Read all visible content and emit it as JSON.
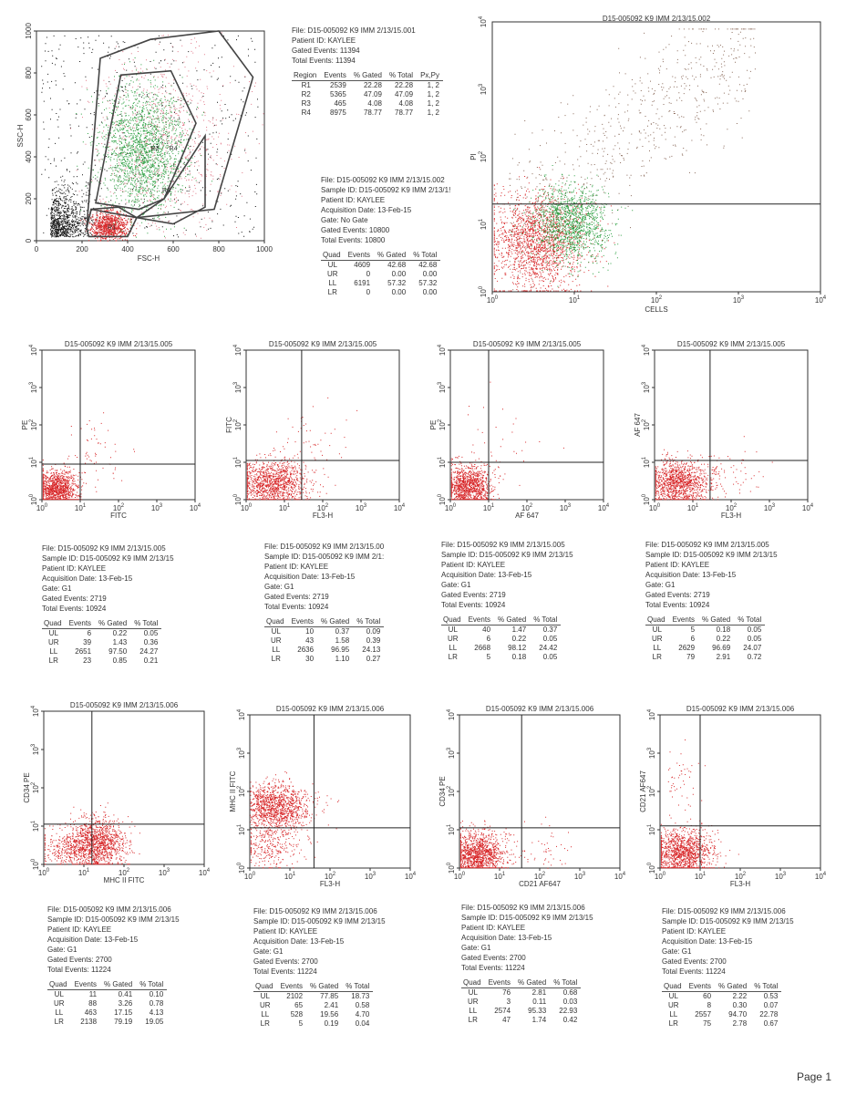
{
  "page_label": "Page 1",
  "scatter_main": {
    "title": "D15-005092 K9 IMM 2/13/15.001",
    "xlabel": "FSC-H",
    "ylabel": "SSC-H",
    "xticks": [
      "0",
      "200",
      "400",
      "600",
      "800",
      "1000"
    ],
    "yticks": [
      "0",
      "200",
      "400",
      "600",
      "800",
      "1000"
    ],
    "gate_labels": [
      "R1",
      "R2",
      "R3",
      "R4"
    ]
  },
  "main_info": {
    "lines": [
      "File: D15-005092 K9 IMM 2/13/15.001",
      "Patient ID: KAYLEE",
      "Gated Events: 11394",
      "Total Events: 11394"
    ],
    "headers": [
      "Region",
      "Events",
      "% Gated",
      "% Total",
      "Px,Py"
    ],
    "rows": [
      [
        "R1",
        "2539",
        "22.28",
        "22.28",
        "1, 2"
      ],
      [
        "R2",
        "5365",
        "47.09",
        "47.09",
        "1, 2"
      ],
      [
        "R3",
        "465",
        "4.08",
        "4.08",
        "1, 2"
      ],
      [
        "R4",
        "8975",
        "78.77",
        "78.77",
        "1, 2"
      ]
    ]
  },
  "pi_info": {
    "lines": [
      "File: D15-005092 K9 IMM 2/13/15.002",
      "Sample ID: D15-005092 K9 IMM 2/13/1!",
      "Patient ID: KAYLEE",
      "Acquisition Date: 13-Feb-15",
      "Gate: No Gate",
      "Gated Events: 10800",
      "Total Events: 10800"
    ],
    "headers": [
      "Quad",
      "Events",
      "% Gated",
      "% Total"
    ],
    "rows": [
      [
        "UL",
        "4609",
        "42.68",
        "42.68"
      ],
      [
        "UR",
        "0",
        "0.00",
        "0.00"
      ],
      [
        "LL",
        "6191",
        "57.32",
        "57.32"
      ],
      [
        "LR",
        "0",
        "0.00",
        "0.00"
      ]
    ]
  },
  "pi_plot": {
    "title": "D15-005092 K9 IMM 2/13/15.002",
    "xlabel": "CELLS",
    "ylabel": "PI"
  },
  "log_ticks": {
    "base": "10",
    "exps": [
      "0",
      "1",
      "2",
      "3",
      "4"
    ]
  },
  "row2_plots": [
    {
      "title": "D15-005092 K9 IMM 2/13/15.005",
      "xlabel": "FITC",
      "ylabel": "PE"
    },
    {
      "title": "D15-005092 K9 IMM 2/13/15.005",
      "xlabel": "FL3-H",
      "ylabel": "FITC"
    },
    {
      "title": "D15-005092 K9 IMM 2/13/15.005",
      "xlabel": "AF 647",
      "ylabel": "PE"
    },
    {
      "title": "D15-005092 K9 IMM 2/13/15.005",
      "xlabel": "FL3-H",
      "ylabel": "AF 647"
    }
  ],
  "row2_info": [
    {
      "lines": [
        "File: D15-005092 K9 IMM 2/13/15.005",
        "Sample ID: D15-005092 K9 IMM 2/13/15",
        "Patient ID: KAYLEE",
        "Acquisition Date: 13-Feb-15",
        "Gate: G1",
        "Gated Events: 2719",
        "Total Events: 10924"
      ],
      "headers": [
        "Quad",
        "Events",
        "% Gated",
        "% Total"
      ],
      "rows": [
        [
          "UL",
          "6",
          "0.22",
          "0.05"
        ],
        [
          "UR",
          "39",
          "1.43",
          "0.36"
        ],
        [
          "LL",
          "2651",
          "97.50",
          "24.27"
        ],
        [
          "LR",
          "23",
          "0.85",
          "0.21"
        ]
      ]
    },
    {
      "lines": [
        "File: D15-005092 K9 IMM 2/13/15.00",
        "Sample ID: D15-005092 K9 IMM 2/1:",
        "Patient ID: KAYLEE",
        "Acquisition Date: 13-Feb-15",
        "Gate: G1",
        "Gated Events: 2719",
        "Total Events: 10924"
      ],
      "headers": [
        "Quad",
        "Events",
        "% Gated",
        "% Total"
      ],
      "rows": [
        [
          "UL",
          "10",
          "0.37",
          "0.09"
        ],
        [
          "UR",
          "43",
          "1.58",
          "0.39"
        ],
        [
          "LL",
          "2636",
          "96.95",
          "24.13"
        ],
        [
          "LR",
          "30",
          "1.10",
          "0.27"
        ]
      ]
    },
    {
      "lines": [
        "File: D15-005092 K9 IMM 2/13/15.005",
        "Sample ID: D15-005092 K9 IMM 2/13/15",
        "Patient ID: KAYLEE",
        "Acquisition Date: 13-Feb-15",
        "Gate: G1",
        "Gated Events: 2719",
        "Total Events: 10924"
      ],
      "headers": [
        "Quad",
        "Events",
        "% Gated",
        "% Total"
      ],
      "rows": [
        [
          "UL",
          "40",
          "1.47",
          "0.37"
        ],
        [
          "UR",
          "6",
          "0.22",
          "0.05"
        ],
        [
          "LL",
          "2668",
          "98.12",
          "24.42"
        ],
        [
          "LR",
          "5",
          "0.18",
          "0.05"
        ]
      ]
    },
    {
      "lines": [
        "File: D15-005092 K9 IMM 2/13/15.005",
        "Sample ID: D15-005092 K9 IMM 2/13/15",
        "Patient ID: KAYLEE",
        "Acquisition Date: 13-Feb-15",
        "Gate: G1",
        "Gated Events: 2719",
        "Total Events: 10924"
      ],
      "headers": [
        "Quad",
        "Events",
        "% Gated",
        "% Total"
      ],
      "rows": [
        [
          "UL",
          "5",
          "0.18",
          "0.05"
        ],
        [
          "UR",
          "6",
          "0.22",
          "0.05"
        ],
        [
          "LL",
          "2629",
          "96.69",
          "24.07"
        ],
        [
          "LR",
          "79",
          "2.91",
          "0.72"
        ]
      ]
    }
  ],
  "row3_plots": [
    {
      "title": "D15-005092 K9 IMM 2/13/15.006",
      "xlabel": "MHC II FITC",
      "ylabel": "CD34 PE"
    },
    {
      "title": "D15-005092 K9 IMM 2/13/15.006",
      "xlabel": "FL3-H",
      "ylabel": "MHC II FITC"
    },
    {
      "title": "D15-005092 K9 IMM 2/13/15.006",
      "xlabel": "CD21 AF647",
      "ylabel": "CD34 PE"
    },
    {
      "title": "D15-005092 K9 IMM 2/13/15.006",
      "xlabel": "FL3-H",
      "ylabel": "CD21 AF647"
    }
  ],
  "row3_info": [
    {
      "lines": [
        "File: D15-005092 K9 IMM 2/13/15.006",
        "Sample ID: D15-005092 K9 IMM 2/13/15",
        "Patient ID: KAYLEE",
        "Acquisition Date: 13-Feb-15",
        "Gate: G1",
        "Gated Events: 2700",
        "Total Events: 11224"
      ],
      "headers": [
        "Quad",
        "Events",
        "% Gated",
        "% Total"
      ],
      "rows": [
        [
          "UL",
          "11",
          "0.41",
          "0.10"
        ],
        [
          "UR",
          "88",
          "3.26",
          "0.78"
        ],
        [
          "LL",
          "463",
          "17.15",
          "4.13"
        ],
        [
          "LR",
          "2138",
          "79.19",
          "19.05"
        ]
      ]
    },
    {
      "lines": [
        "File: D15-005092 K9 IMM 2/13/15.006",
        "Sample ID: D15-005092 K9 IMM 2/13/15",
        "Patient ID: KAYLEE",
        "Acquisition Date: 13-Feb-15",
        "Gate: G1",
        "Gated Events: 2700",
        "Total Events: 11224"
      ],
      "headers": [
        "Quad",
        "Events",
        "% Gated",
        "% Total"
      ],
      "rows": [
        [
          "UL",
          "2102",
          "77.85",
          "18.73"
        ],
        [
          "UR",
          "65",
          "2.41",
          "0.58"
        ],
        [
          "LL",
          "528",
          "19.56",
          "4.70"
        ],
        [
          "LR",
          "5",
          "0.19",
          "0.04"
        ]
      ]
    },
    {
      "lines": [
        "File: D15-005092 K9 IMM 2/13/15.006",
        "Sample ID: D15-005092 K9 IMM 2/13/15",
        "Patient ID: KAYLEE",
        "Acquisition Date: 13-Feb-15",
        "Gate: G1",
        "Gated Events: 2700",
        "Total Events: 11224"
      ],
      "headers": [
        "Quad",
        "Events",
        "% Gated",
        "% Total"
      ],
      "rows": [
        [
          "UL",
          "76",
          "2.81",
          "0.68"
        ],
        [
          "UR",
          "3",
          "0.11",
          "0.03"
        ],
        [
          "LL",
          "2574",
          "95.33",
          "22.93"
        ],
        [
          "LR",
          "47",
          "1.74",
          "0.42"
        ]
      ]
    },
    {
      "lines": [
        "File: D15-005092 K9 IMM 2/13/15.006",
        "Sample ID: D15-005092 K9 IMM 2/13/15",
        "Patient ID: KAYLEE",
        "Acquisition Date: 13-Feb-15",
        "Gate: G1",
        "Gated Events: 2700",
        "Total Events: 11224"
      ],
      "headers": [
        "Quad",
        "Events",
        "% Gated",
        "% Total"
      ],
      "rows": [
        [
          "UL",
          "60",
          "2.22",
          "0.53"
        ],
        [
          "UR",
          "8",
          "0.30",
          "0.07"
        ],
        [
          "LL",
          "2557",
          "94.70",
          "22.78"
        ],
        [
          "LR",
          "75",
          "2.78",
          "0.67"
        ]
      ]
    }
  ],
  "colors": {
    "red": "#d8282a",
    "green": "#2ea043",
    "black": "#111111",
    "pink": "#e27a8a",
    "gate": "#444444"
  }
}
